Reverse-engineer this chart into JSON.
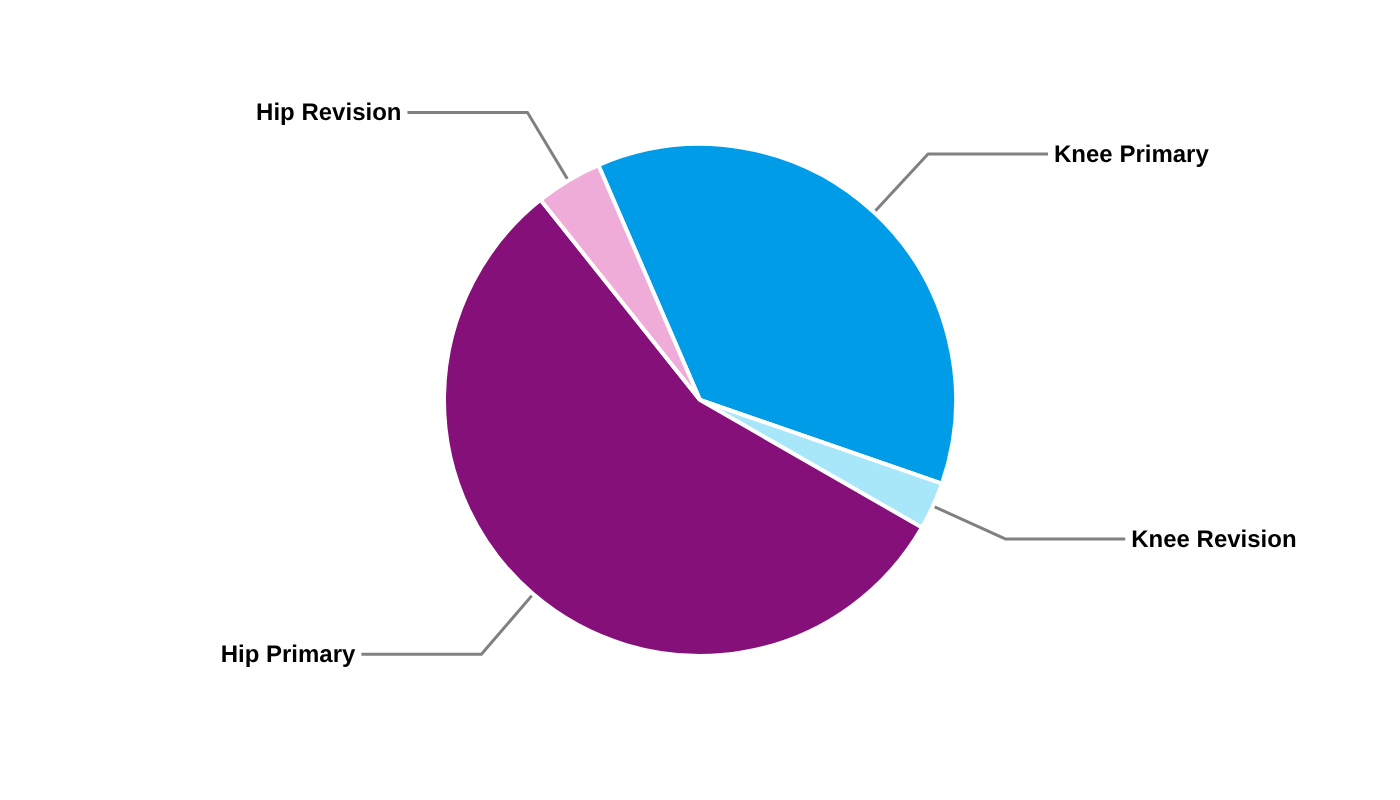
{
  "chart_data": {
    "type": "pie",
    "categories": [
      "Knee Primary",
      "Knee Revision",
      "Hip Primary",
      "Hip Revision"
    ],
    "values": [
      36.8,
      3.0,
      56.0,
      4.2
    ],
    "colors": [
      "#009ce8",
      "#a8e6fa",
      "#86107a",
      "#f0acd9"
    ]
  }
}
